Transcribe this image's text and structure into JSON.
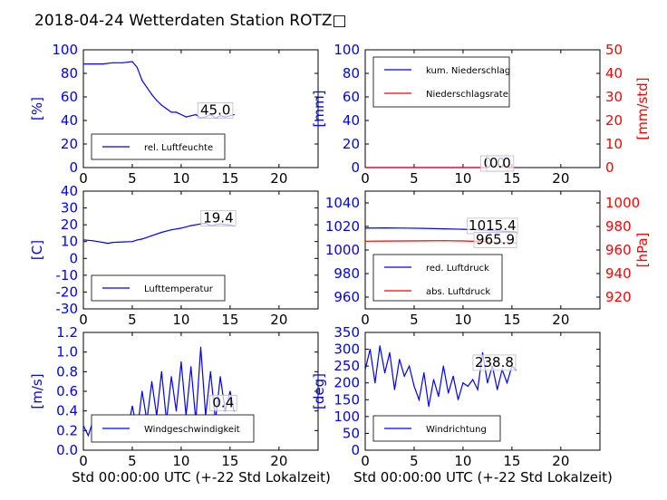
{
  "title": "2018-04-24 Wetterdaten Station ROTZ□",
  "xaxis_label": "Std 00:00:00 UTC (+-22 Std Lokalzeit)",
  "colors": {
    "left_axis": "#0000ff",
    "right_axis": "#ff0000",
    "series_blue": "#0000ff",
    "series_red": "#ff0000",
    "text": "#000000"
  },
  "chart_data": [
    {
      "type": "line",
      "panel": "humidity",
      "ylabel": "[%]",
      "xlim": [
        0,
        24
      ],
      "ylim": [
        0,
        100
      ],
      "xticks": [
        0,
        5,
        10,
        15,
        20
      ],
      "yticks": [
        0,
        20,
        40,
        60,
        80,
        100
      ],
      "legend": "bottom-left",
      "series": [
        {
          "name": "rel. Luftfeuchte",
          "color": "#0000ff",
          "x": [
            0,
            1,
            2,
            3,
            4,
            5,
            5.5,
            6,
            6.5,
            7,
            7.5,
            8,
            8.5,
            9,
            9.5,
            10,
            10.5,
            11,
            11.5,
            12,
            12.5,
            13,
            13.5,
            14,
            14.5,
            15,
            15.4
          ],
          "y": [
            88,
            88,
            88,
            89,
            89,
            90,
            85,
            74,
            68,
            62,
            57,
            53,
            50,
            47,
            47,
            45,
            43,
            44,
            45,
            42,
            43,
            45,
            42,
            44,
            43,
            44,
            45
          ]
        }
      ],
      "annotations": [
        {
          "x": 13.5,
          "y": 45.0,
          "text": "45.0"
        }
      ]
    },
    {
      "type": "line",
      "panel": "precipitation",
      "ylabel": "[mm]",
      "ylabel_right": "[mm/std]",
      "xlim": [
        0,
        24
      ],
      "ylim": [
        0,
        100
      ],
      "ylim_right": [
        0,
        50
      ],
      "xticks": [
        0,
        5,
        10,
        15,
        20
      ],
      "yticks": [
        0,
        20,
        40,
        60,
        80,
        100
      ],
      "yticks_right": [
        0,
        10,
        20,
        30,
        40,
        50
      ],
      "legend": "top-left",
      "series": [
        {
          "name": "kum. Niederschlag",
          "color": "#0000ff",
          "x": [
            0,
            15.4
          ],
          "y": [
            0,
            0
          ]
        },
        {
          "name": "Niederschlagsrate",
          "color": "#ff0000",
          "x": [
            0,
            15.4
          ],
          "y": [
            0,
            0
          ]
        }
      ],
      "annotations": [
        {
          "x": 13.2,
          "y": 0,
          "text": "0.0"
        },
        {
          "x": 13.8,
          "y": 0,
          "text": "0.0"
        }
      ]
    },
    {
      "type": "line",
      "panel": "temperature",
      "ylabel": "[C]",
      "xlim": [
        0,
        24
      ],
      "ylim": [
        -30,
        40
      ],
      "xticks": [
        0,
        5,
        10,
        15,
        20
      ],
      "yticks": [
        -30,
        -20,
        -10,
        0,
        10,
        20,
        30,
        40
      ],
      "legend": "bottom-left",
      "series": [
        {
          "name": "Lufttemperatur",
          "color": "#0000ff",
          "x": [
            0,
            1,
            2,
            2.5,
            3,
            4,
            5,
            5.5,
            6,
            7,
            8,
            9,
            10,
            11,
            12,
            12.5,
            13,
            14,
            15,
            15.4
          ],
          "y": [
            11,
            10.5,
            9.5,
            9,
            9.5,
            9.8,
            10,
            11,
            11.5,
            13.5,
            15.5,
            17,
            18,
            19.5,
            20.5,
            21,
            19.5,
            20.5,
            19.8,
            19.4
          ]
        }
      ],
      "annotations": [
        {
          "x": 13.8,
          "y": 21.5,
          "text": "19.4"
        }
      ]
    },
    {
      "type": "line",
      "panel": "pressure",
      "ylabel_right": "[hPa]",
      "xlim": [
        0,
        24
      ],
      "ylim": [
        950,
        1050
      ],
      "ylim_right": [
        910,
        1010
      ],
      "xticks": [
        0,
        5,
        10,
        15,
        20
      ],
      "yticks": [
        960,
        980,
        1000,
        1020,
        1040
      ],
      "yticks_right": [
        920,
        940,
        960,
        980,
        1000
      ],
      "legend": "bottom-left",
      "series": [
        {
          "name": "red. Luftdruck",
          "color": "#0000ff",
          "axis": "left",
          "x": [
            0,
            2,
            4,
            6,
            8,
            10,
            12,
            14,
            15.4
          ],
          "y": [
            1018.5,
            1018.8,
            1018.6,
            1018.4,
            1018.0,
            1017.6,
            1017.0,
            1016.0,
            1015.4
          ]
        },
        {
          "name": "abs. Luftdruck",
          "color": "#ff0000",
          "axis": "right",
          "x": [
            0,
            2,
            4,
            6,
            8,
            10,
            12,
            14,
            15.4
          ],
          "y": [
            967.5,
            967.6,
            967.7,
            967.8,
            967.9,
            967.7,
            967.2,
            966.3,
            965.9
          ]
        }
      ],
      "annotations": [
        {
          "x": 13.0,
          "y": 1017,
          "text": "1015.4"
        },
        {
          "x": 13.3,
          "y": 1005,
          "text": "965.9"
        }
      ]
    },
    {
      "type": "line",
      "panel": "wind_speed",
      "ylabel": "[m/s]",
      "xlim": [
        0,
        24
      ],
      "ylim": [
        0,
        1.2
      ],
      "xticks": [
        0,
        5,
        10,
        15,
        20
      ],
      "yticks": [
        0.0,
        0.2,
        0.4,
        0.6,
        0.8,
        1.0,
        1.2
      ],
      "legend": "bottom-right",
      "series": [
        {
          "name": "Windgeschwindigkeit",
          "color": "#0000ff",
          "x": [
            0,
            0.5,
            1,
            1.5,
            2,
            2.5,
            3,
            3.5,
            4,
            4.5,
            5,
            5.5,
            6,
            6.5,
            7,
            7.5,
            8,
            8.5,
            9,
            9.5,
            10,
            10.5,
            11,
            11.5,
            12,
            12.5,
            13,
            13.5,
            14,
            14.5,
            15,
            15.4
          ],
          "y": [
            0.25,
            0.15,
            0.3,
            0.2,
            0.35,
            0.15,
            0.3,
            0.2,
            0.35,
            0.2,
            0.45,
            0.2,
            0.6,
            0.3,
            0.7,
            0.35,
            0.8,
            0.3,
            0.75,
            0.4,
            0.9,
            0.35,
            0.85,
            0.3,
            1.05,
            0.35,
            0.8,
            0.3,
            0.75,
            0.4,
            0.6,
            0.4
          ]
        }
      ],
      "annotations": [
        {
          "x": 14.3,
          "y": 0.44,
          "text": "0.4"
        }
      ]
    },
    {
      "type": "line",
      "panel": "wind_direction",
      "ylabel": "[deg]",
      "xlim": [
        0,
        24
      ],
      "ylim": [
        0,
        350
      ],
      "xticks": [
        0,
        5,
        10,
        15,
        20
      ],
      "yticks": [
        0,
        50,
        100,
        150,
        200,
        250,
        300,
        350
      ],
      "legend": "bottom-left",
      "series": [
        {
          "name": "Windrichtung",
          "color": "#0000ff",
          "x": [
            0,
            0.5,
            1,
            1.5,
            2,
            2.5,
            3,
            3.5,
            4,
            4.5,
            5,
            5.5,
            6,
            6.5,
            7,
            7.5,
            8,
            8.5,
            9,
            9.5,
            10,
            10.5,
            11,
            11.5,
            12,
            12.5,
            13,
            13.5,
            14,
            14.5,
            15,
            15.4
          ],
          "y": [
            240,
            300,
            200,
            310,
            230,
            290,
            180,
            270,
            220,
            250,
            190,
            150,
            230,
            130,
            210,
            160,
            250,
            170,
            220,
            150,
            200,
            190,
            210,
            180,
            290,
            200,
            250,
            180,
            240,
            200,
            250,
            238
          ]
        }
      ],
      "annotations": [
        {
          "x": 13.2,
          "y": 248,
          "text": "238.8"
        }
      ]
    }
  ]
}
